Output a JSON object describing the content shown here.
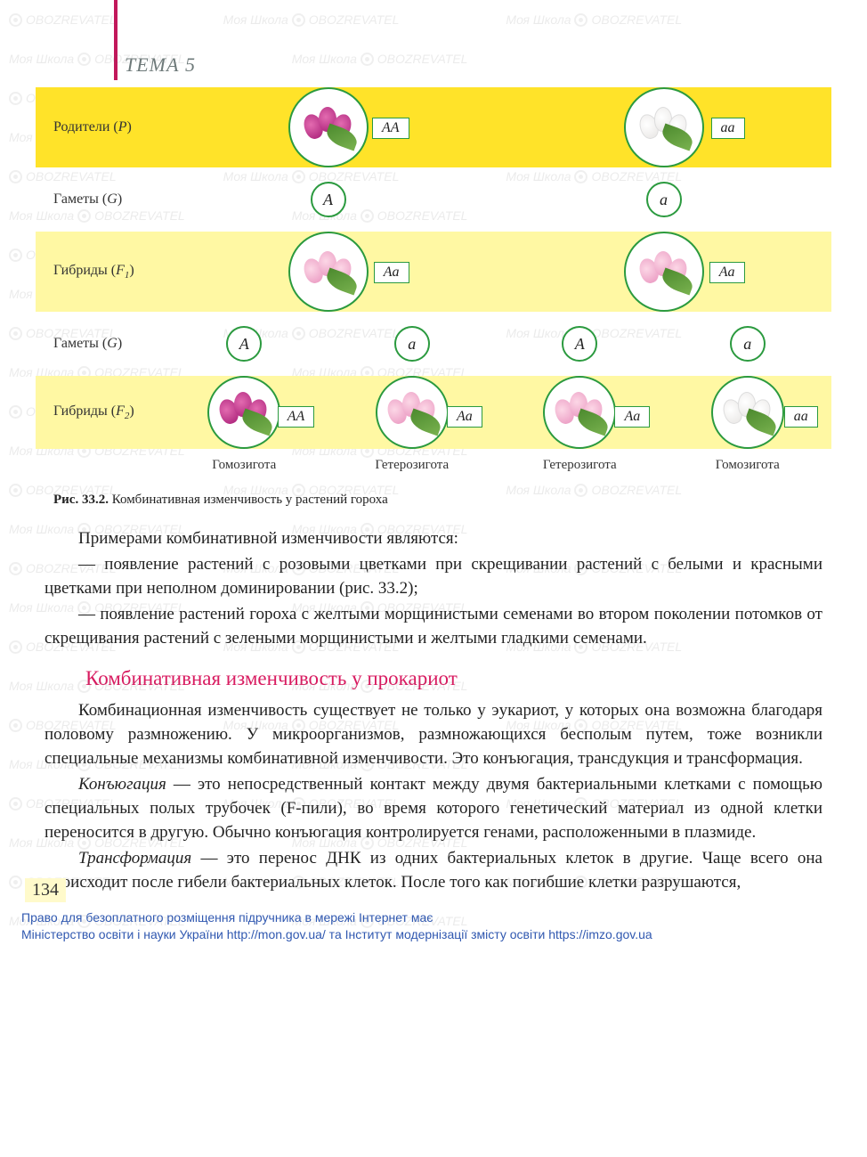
{
  "tema": "ТЕМА 5",
  "diagram": {
    "accent_color": "#c2185b",
    "band_yellow": "#ffe329",
    "band_lemon": "#fff8a3",
    "circle_border": "#2b9a3f",
    "rows": {
      "parents": {
        "label": "Родители (",
        "sym": "P",
        "close": ")",
        "left_geno": "АА",
        "right_geno": "аа"
      },
      "gametes1": {
        "label": "Гаметы (",
        "sym": "G",
        "close": ")",
        "left": "A",
        "right": "a"
      },
      "f1": {
        "label": "Гибриды (",
        "sym": "F",
        "sub": "1",
        "close": ")",
        "left_geno": "Aa",
        "right_geno": "Aa"
      },
      "gametes2": {
        "label": "Гаметы (",
        "sym": "G",
        "close": ")",
        "g1": "A",
        "g2": "a",
        "g3": "A",
        "g4": "a"
      },
      "f2": {
        "label": "Гибриды (",
        "sym": "F",
        "sub": "2",
        "close": ")",
        "g1": "АА",
        "g2": "Aa",
        "g3": "Aa",
        "g4": "aa"
      }
    },
    "sublabels": {
      "s1": "Гомозигота",
      "s2": "Гетерозигота",
      "s3": "Гетерозигота",
      "s4": "Гомозигота"
    },
    "flower_colors": {
      "purple": [
        "#e36bb0",
        "#a71d76"
      ],
      "white": [
        "#ffffff",
        "#e8e6e4"
      ],
      "pink": [
        "#fcd7e6",
        "#e995bf"
      ]
    }
  },
  "figcap": {
    "b": "Рис. 33.2.",
    "t": " Комбинативная изменчивость у растений гороха"
  },
  "para1": "Примерами комбинативной изменчивости являются:",
  "para2": "— появление растений с розовыми цветками при скрещивании растений с белыми и красными цветками при неполном доминировании (рис. 33.2);",
  "para3": "— появление растений гороха с желтыми морщинистыми семенами во втором поколении потомков от скрещивания растений с зелеными морщинистыми и желтыми гладкими семенами.",
  "callout": "Комбинативная изменчивость у прокариот",
  "para4": "Комбинационная изменчивость существует не только у эукариот, у которых она возможна благодаря половому размножению. У микроорганизмов, размножающихся бесполым путем, тоже возникли специальные механизмы комбинативной изменчивости. Это конъюгация, трансдукция и трансформация.",
  "para5_em": "Конъюгация",
  "para5": " — это непосредственный контакт между двумя бактериальными клетками с помощью специальных полых трубочек (F-пили), во время которого генетический материал из одной клетки переносится в другую. Обычно конъюгация контролируется генами, расположенными в плазмиде.",
  "para6_em": "Трансформация",
  "para6": " — это перенос ДНК из одних бактериальных клеток в другие. Чаще всего она происходит после гибели бактериальных клеток. После того как погибшие клетки разрушаются,",
  "pagenum": "134",
  "legal1": "Право для безоплатного розміщення підручника в мережі Інтернет має",
  "legal2_a": "Міністерство освіти і науки України ",
  "legal2_url1": "http://mon.gov.ua/",
  "legal2_b": " та Інститут модернізації змісту освіти ",
  "legal2_url2": "https://imzo.gov.ua",
  "wm1": "Моя Школа",
  "wm2": "OBOZREVATEL"
}
